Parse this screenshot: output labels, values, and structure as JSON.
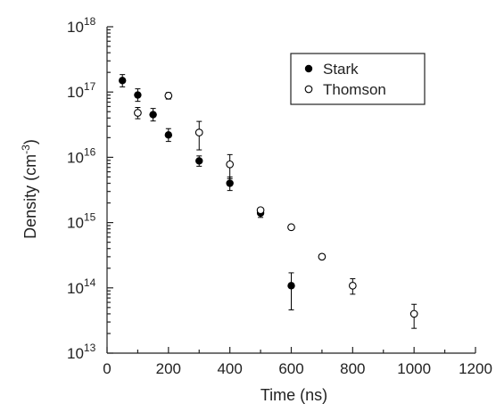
{
  "chart_data": {
    "type": "scatter",
    "title": "",
    "xlabel": "Time (ns)",
    "ylabel": {
      "base": "Density (cm",
      "sup": "-3",
      "close": ")"
    },
    "xlim": [
      0,
      1200
    ],
    "ylim_exp": [
      13,
      18
    ],
    "yscale": "log",
    "x_ticks": [
      "0",
      "200",
      "400",
      "600",
      "800",
      "1000",
      "1200"
    ],
    "y_ticks": [
      {
        "base": "10",
        "exp": "13"
      },
      {
        "base": "10",
        "exp": "14"
      },
      {
        "base": "10",
        "exp": "15"
      },
      {
        "base": "10",
        "exp": "16"
      },
      {
        "base": "10",
        "exp": "17"
      },
      {
        "base": "10",
        "exp": "18"
      }
    ],
    "grid": false,
    "legend_position": "top-right",
    "series": [
      {
        "name": "Stark",
        "marker": "filled-circle",
        "color": "#000000",
        "points": [
          {
            "x": 50,
            "y": 1.5e+17,
            "err_lo": 1.2e+17,
            "err_hi": 1.85e+17
          },
          {
            "x": 100,
            "y": 9e+16,
            "err_lo": 7.2e+16,
            "err_hi": 1.12e+17
          },
          {
            "x": 150,
            "y": 4.5e+16,
            "err_lo": 3.6e+16,
            "err_hi": 5.6e+16
          },
          {
            "x": 200,
            "y": 2.2e+16,
            "err_lo": 1.75e+16,
            "err_hi": 2.75e+16
          },
          {
            "x": 300,
            "y": 8800000000000000.0,
            "err_lo": 7300000000000000.0,
            "err_hi": 1.05e+16
          },
          {
            "x": 400,
            "y": 4000000000000000.0,
            "err_lo": 3100000000000000.0,
            "err_hi": 5000000000000000.0
          },
          {
            "x": 500,
            "y": 1400000000000000.0,
            "err_lo": 1200000000000000.0,
            "err_hi": 1600000000000000.0
          },
          {
            "x": 600,
            "y": 108000000000000.0,
            "err_lo": 46000000000000.0,
            "err_hi": 170000000000000.0
          }
        ]
      },
      {
        "name": "Thomson",
        "marker": "open-circle",
        "color": "#000000",
        "points": [
          {
            "x": 100,
            "y": 4.8e+16,
            "err_lo": 3.9e+16,
            "err_hi": 5.8e+16
          },
          {
            "x": 200,
            "y": 8.8e+16,
            "err_lo": 7.8e+16,
            "err_hi": 9.8e+16
          },
          {
            "x": 300,
            "y": 2.4e+16,
            "err_lo": 1.3e+16,
            "err_hi": 3.55e+16
          },
          {
            "x": 400,
            "y": 7800000000000000.0,
            "err_lo": 4700000000000000.0,
            "err_hi": 1.1e+16
          },
          {
            "x": 500,
            "y": 1550000000000000.0,
            "err_lo": 1450000000000000.0,
            "err_hi": 1650000000000000.0
          },
          {
            "x": 600,
            "y": 850000000000000.0
          },
          {
            "x": 700,
            "y": 300000000000000.0
          },
          {
            "x": 800,
            "y": 108000000000000.0,
            "err_lo": 80000000000000.0,
            "err_hi": 138000000000000.0
          },
          {
            "x": 1000,
            "y": 40000000000000.0,
            "err_lo": 24000000000000.0,
            "err_hi": 56000000000000.0
          }
        ]
      }
    ]
  }
}
